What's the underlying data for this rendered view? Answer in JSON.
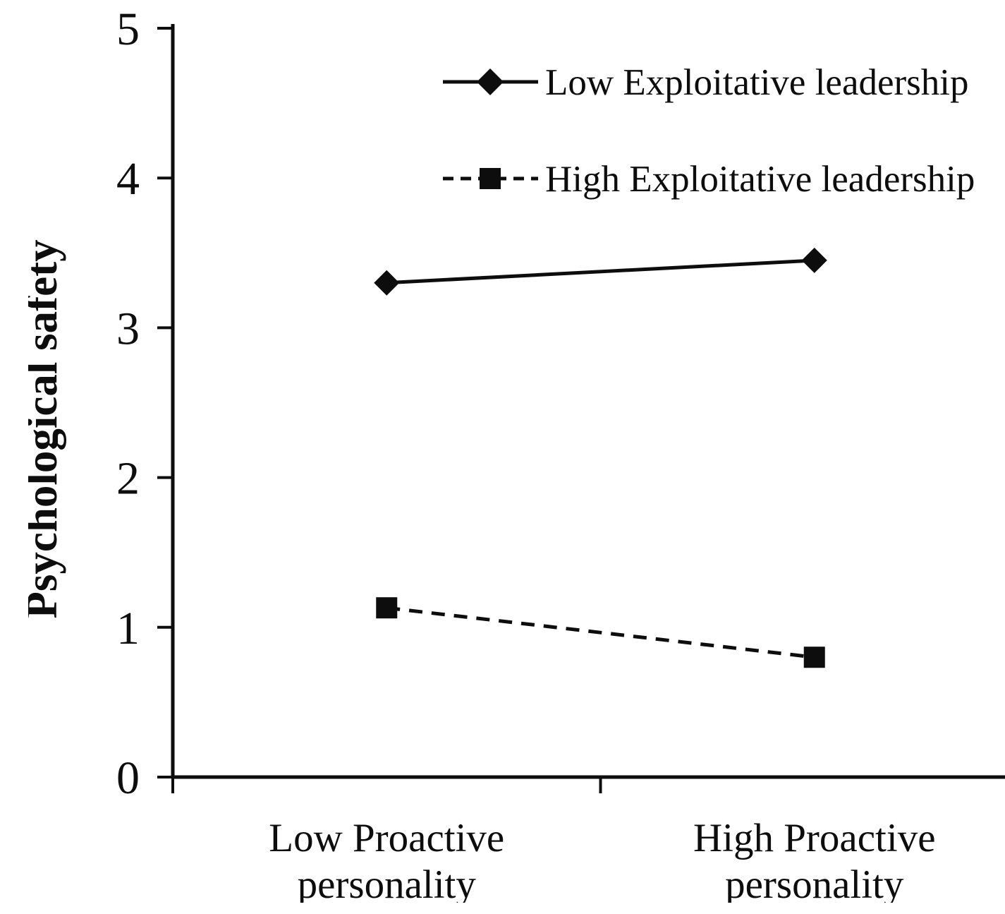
{
  "figure": {
    "background": "#ffffff",
    "ink_color": "#0d0d0d"
  },
  "chart_data": {
    "type": "line",
    "title": "",
    "xlabel": "",
    "ylabel": "Psychological safety",
    "categories": [
      "Low Proactive\npersonality",
      "High Proactive\npersonality"
    ],
    "ylim": [
      0,
      5
    ],
    "yticks": [
      0,
      1,
      2,
      3,
      4,
      5
    ],
    "grid": false,
    "legend_position": "top-inside",
    "series": [
      {
        "name": "Low Exploitative leadership",
        "values": [
          3.3,
          3.45
        ],
        "marker": "diamond",
        "line_style": "solid",
        "color": "#0d0d0d"
      },
      {
        "name": "High Exploitative leadership",
        "values": [
          1.13,
          0.8
        ],
        "marker": "square",
        "line_style": "dashed",
        "color": "#0d0d0d"
      }
    ]
  }
}
